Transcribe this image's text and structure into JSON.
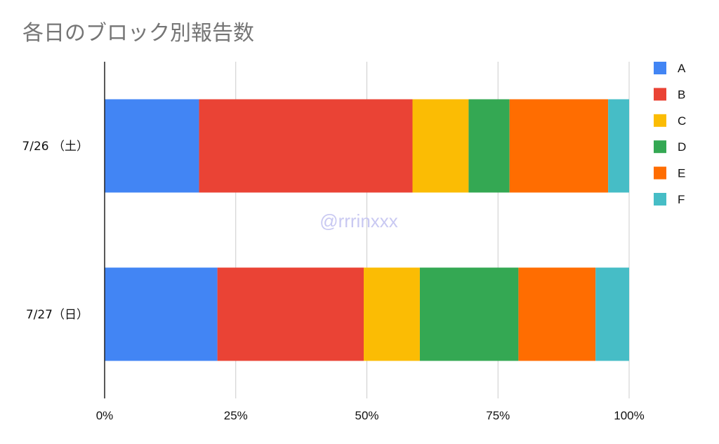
{
  "chart_data": {
    "type": "bar",
    "orientation": "horizontal",
    "stacked": "percent",
    "title": "各日のブロック別報告数",
    "categories": [
      "7/26 （土）",
      "7/27（日）"
    ],
    "series": [
      {
        "name": "A",
        "color": "#4285F4",
        "values": [
          18.0,
          21.5
        ]
      },
      {
        "name": "B",
        "color": "#EA4335",
        "values": [
          40.7,
          27.9
        ]
      },
      {
        "name": "C",
        "color": "#FBBC04",
        "values": [
          10.7,
          10.7
        ]
      },
      {
        "name": "D",
        "color": "#34A853",
        "values": [
          7.8,
          18.8
        ]
      },
      {
        "name": "E",
        "color": "#FF6D01",
        "values": [
          18.8,
          14.7
        ]
      },
      {
        "name": "F",
        "color": "#46BDC6",
        "values": [
          4.0,
          6.4
        ]
      }
    ],
    "xticks": [
      "0%",
      "25%",
      "50%",
      "75%",
      "100%"
    ],
    "xlim": [
      0,
      100
    ],
    "grid": true,
    "legend_position": "right",
    "watermark": "@rrrinxxx"
  }
}
